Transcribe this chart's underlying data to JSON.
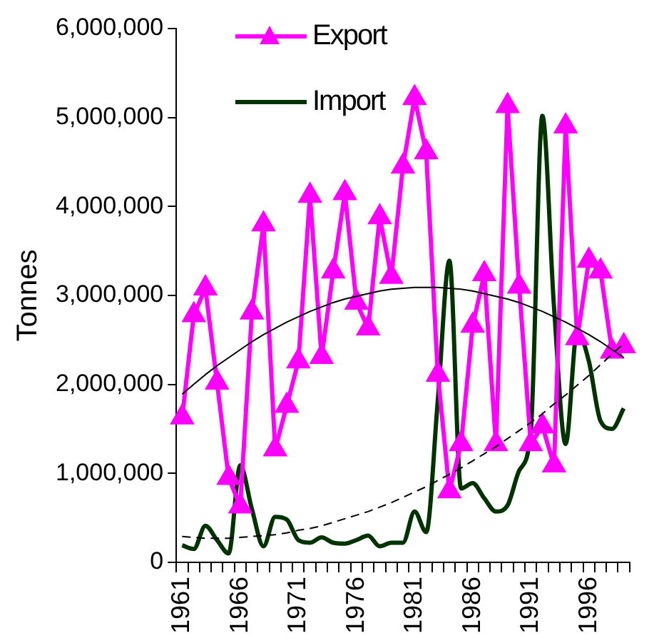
{
  "chart_data": {
    "type": "line",
    "ylabel": "Tonnes",
    "categories": [
      "1961",
      null,
      null,
      null,
      null,
      "1966",
      null,
      null,
      null,
      null,
      "1971",
      null,
      null,
      null,
      null,
      "1976",
      null,
      null,
      null,
      null,
      "1981",
      null,
      null,
      null,
      null,
      "1986",
      null,
      null,
      null,
      null,
      "1991",
      null,
      null,
      null,
      null,
      "1996",
      null,
      null,
      null
    ],
    "series": [
      {
        "name": "Export",
        "color": "#ff00ff",
        "marker": "triangle",
        "line_style": "solid",
        "values": [
          1630000,
          2780000,
          3080000,
          2020000,
          950000,
          630000,
          2810000,
          3800000,
          1270000,
          1760000,
          2260000,
          4120000,
          2310000,
          3270000,
          4150000,
          2920000,
          2630000,
          3880000,
          3210000,
          4450000,
          5220000,
          4610000,
          2110000,
          800000,
          1330000,
          2660000,
          3240000,
          1330000,
          5130000,
          3100000,
          1330000,
          1530000,
          1090000,
          4900000,
          2520000,
          3390000,
          3270000,
          2370000,
          2430000
        ]
      },
      {
        "name": "Import",
        "color": "#003300",
        "marker": "none",
        "line_style": "solid",
        "values": [
          190000,
          150000,
          410000,
          250000,
          100000,
          1090000,
          600000,
          180000,
          510000,
          480000,
          250000,
          220000,
          280000,
          220000,
          210000,
          250000,
          300000,
          180000,
          220000,
          220000,
          570000,
          340000,
          1820000,
          3390000,
          830000,
          890000,
          720000,
          570000,
          640000,
          1030000,
          1470000,
          5020000,
          2870000,
          1330000,
          2600000,
          2260000,
          1590000,
          1500000,
          1730000
        ]
      },
      {
        "color": "#000000",
        "marker": "none",
        "line_style": "solid",
        "values": [
          1890000,
          2000000,
          2110000,
          2210000,
          2300000,
          2390000,
          2480000,
          2560000,
          2630000,
          2700000,
          2760000,
          2820000,
          2870000,
          2920000,
          2960000,
          2990000,
          3020000,
          3050000,
          3070000,
          3080000,
          3090000,
          3090000,
          3090000,
          3080000,
          3070000,
          3050000,
          3020000,
          2990000,
          2960000,
          2920000,
          2870000,
          2820000,
          2760000,
          2700000,
          2630000,
          2560000,
          2480000,
          2390000,
          2300000
        ]
      },
      {
        "color": "#000000",
        "marker": "none",
        "line_style": "dashed",
        "values": [
          290000,
          280000,
          270000,
          270000,
          270000,
          280000,
          290000,
          300000,
          310000,
          330000,
          360000,
          380000,
          410000,
          450000,
          490000,
          530000,
          570000,
          620000,
          670000,
          730000,
          790000,
          850000,
          920000,
          990000,
          1060000,
          1140000,
          1220000,
          1300000,
          1390000,
          1480000,
          1570000,
          1670000,
          1780000,
          1880000,
          1990000,
          2100000,
          2220000,
          2340000,
          2460000
        ]
      }
    ],
    "ylim": [
      0,
      6000000
    ],
    "yticks": [
      {
        "value": 0,
        "label": "0"
      },
      {
        "value": 1000000,
        "label": "1,000,000"
      },
      {
        "value": 2000000,
        "label": "2,000,000"
      },
      {
        "value": 3000000,
        "label": "3,000,000"
      },
      {
        "value": 4000000,
        "label": "4,000,000"
      },
      {
        "value": 5000000,
        "label": "5,000,000"
      },
      {
        "value": 6000000,
        "label": "6,000,000"
      }
    ],
    "grid": false,
    "legend": "top left"
  }
}
